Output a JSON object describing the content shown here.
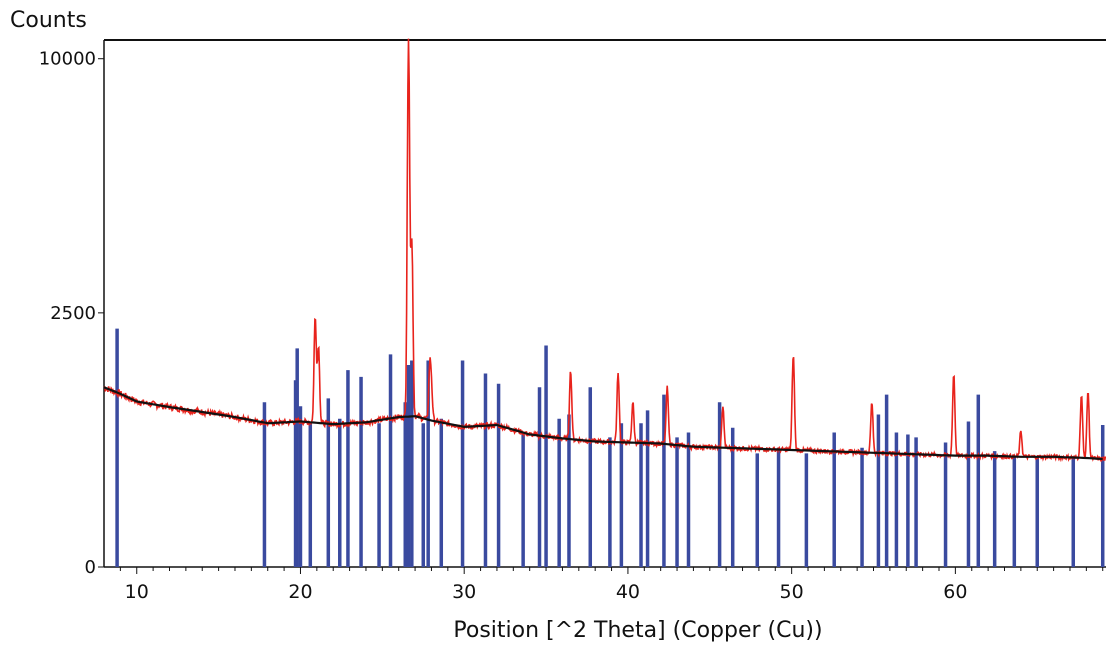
{
  "chart_data": {
    "type": "line",
    "ylabel": "Counts",
    "xlabel": "Position [^2 Theta] (Copper (Cu))",
    "xlim": [
      8,
      69.2
    ],
    "ylim": [
      0,
      10750
    ],
    "y_scale": "sqrt",
    "x_ticks": [
      10,
      20,
      30,
      40,
      50,
      60
    ],
    "y_ticks": [
      0,
      2500,
      10000
    ],
    "grid": false,
    "colors": {
      "measured": "#e8231c",
      "background": "#111111",
      "reference": "#3a4a9f"
    },
    "background": [
      [
        8,
        1250
      ],
      [
        9,
        1160
      ],
      [
        10,
        1060
      ],
      [
        12,
        990
      ],
      [
        14,
        930
      ],
      [
        16,
        870
      ],
      [
        18,
        800
      ],
      [
        20,
        820
      ],
      [
        22,
        790
      ],
      [
        24,
        810
      ],
      [
        26,
        870
      ],
      [
        27,
        880
      ],
      [
        28,
        830
      ],
      [
        30,
        760
      ],
      [
        32,
        780
      ],
      [
        34,
        680
      ],
      [
        36,
        640
      ],
      [
        38,
        610
      ],
      [
        40,
        600
      ],
      [
        42,
        590
      ],
      [
        44,
        560
      ],
      [
        46,
        550
      ],
      [
        48,
        540
      ],
      [
        50,
        530
      ],
      [
        52,
        520
      ],
      [
        54,
        510
      ],
      [
        56,
        500
      ],
      [
        58,
        490
      ],
      [
        60,
        480
      ],
      [
        62,
        480
      ],
      [
        64,
        470
      ],
      [
        66,
        470
      ],
      [
        68,
        460
      ],
      [
        69.2,
        450
      ]
    ],
    "measured_peaks": [
      {
        "x": 20.9,
        "y": 2450
      },
      {
        "x": 21.1,
        "y": 1900
      },
      {
        "x": 26.6,
        "y": 10750
      },
      {
        "x": 26.8,
        "y": 4100
      },
      {
        "x": 27.9,
        "y": 1550
      },
      {
        "x": 28.0,
        "y": 1200
      },
      {
        "x": 36.5,
        "y": 1500
      },
      {
        "x": 39.4,
        "y": 1450
      },
      {
        "x": 40.3,
        "y": 1050
      },
      {
        "x": 42.4,
        "y": 1250
      },
      {
        "x": 45.8,
        "y": 1000
      },
      {
        "x": 50.1,
        "y": 1750
      },
      {
        "x": 54.9,
        "y": 1050
      },
      {
        "x": 59.9,
        "y": 1450
      },
      {
        "x": 64.0,
        "y": 720
      },
      {
        "x": 67.7,
        "y": 1150
      },
      {
        "x": 68.1,
        "y": 1200
      }
    ],
    "reference_lines": [
      {
        "x": 8.8,
        "y": 2200
      },
      {
        "x": 17.8,
        "y": 1050
      },
      {
        "x": 19.7,
        "y": 1350
      },
      {
        "x": 19.8,
        "y": 1850
      },
      {
        "x": 20.0,
        "y": 1000
      },
      {
        "x": 20.6,
        "y": 800
      },
      {
        "x": 21.7,
        "y": 1100
      },
      {
        "x": 22.4,
        "y": 850
      },
      {
        "x": 22.9,
        "y": 1500
      },
      {
        "x": 23.7,
        "y": 1400
      },
      {
        "x": 24.8,
        "y": 800
      },
      {
        "x": 25.5,
        "y": 1750
      },
      {
        "x": 26.4,
        "y": 1050
      },
      {
        "x": 26.6,
        "y": 1580
      },
      {
        "x": 26.8,
        "y": 1650
      },
      {
        "x": 27.5,
        "y": 800
      },
      {
        "x": 27.8,
        "y": 1650
      },
      {
        "x": 28.6,
        "y": 850
      },
      {
        "x": 29.9,
        "y": 1650
      },
      {
        "x": 31.3,
        "y": 1450
      },
      {
        "x": 32.1,
        "y": 1300
      },
      {
        "x": 33.6,
        "y": 700
      },
      {
        "x": 34.6,
        "y": 1250
      },
      {
        "x": 35.0,
        "y": 1900
      },
      {
        "x": 35.8,
        "y": 850
      },
      {
        "x": 36.4,
        "y": 900
      },
      {
        "x": 37.7,
        "y": 1250
      },
      {
        "x": 38.9,
        "y": 650
      },
      {
        "x": 39.6,
        "y": 800
      },
      {
        "x": 40.8,
        "y": 800
      },
      {
        "x": 41.2,
        "y": 950
      },
      {
        "x": 42.2,
        "y": 1150
      },
      {
        "x": 43.0,
        "y": 650
      },
      {
        "x": 43.7,
        "y": 700
      },
      {
        "x": 45.6,
        "y": 1050
      },
      {
        "x": 46.4,
        "y": 750
      },
      {
        "x": 47.9,
        "y": 500
      },
      {
        "x": 49.2,
        "y": 550
      },
      {
        "x": 50.9,
        "y": 500
      },
      {
        "x": 52.6,
        "y": 700
      },
      {
        "x": 54.3,
        "y": 550
      },
      {
        "x": 55.3,
        "y": 900
      },
      {
        "x": 55.8,
        "y": 1150
      },
      {
        "x": 56.4,
        "y": 700
      },
      {
        "x": 57.1,
        "y": 680
      },
      {
        "x": 57.6,
        "y": 650
      },
      {
        "x": 59.4,
        "y": 600
      },
      {
        "x": 60.8,
        "y": 820
      },
      {
        "x": 61.4,
        "y": 1150
      },
      {
        "x": 62.4,
        "y": 520
      },
      {
        "x": 63.6,
        "y": 480
      },
      {
        "x": 65.0,
        "y": 470
      },
      {
        "x": 67.2,
        "y": 460
      },
      {
        "x": 69.0,
        "y": 780
      }
    ]
  }
}
